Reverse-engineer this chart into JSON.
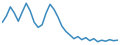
{
  "values": [
    60,
    72,
    90,
    78,
    62,
    80,
    97,
    82,
    60,
    50,
    55,
    78,
    95,
    85,
    70,
    52,
    42,
    35,
    28,
    32,
    26,
    30,
    24,
    28,
    22,
    25,
    23,
    26,
    24,
    25
  ],
  "line_color": "#3a8abf",
  "background_color": "#ffffff",
  "linewidth": 1.1
}
